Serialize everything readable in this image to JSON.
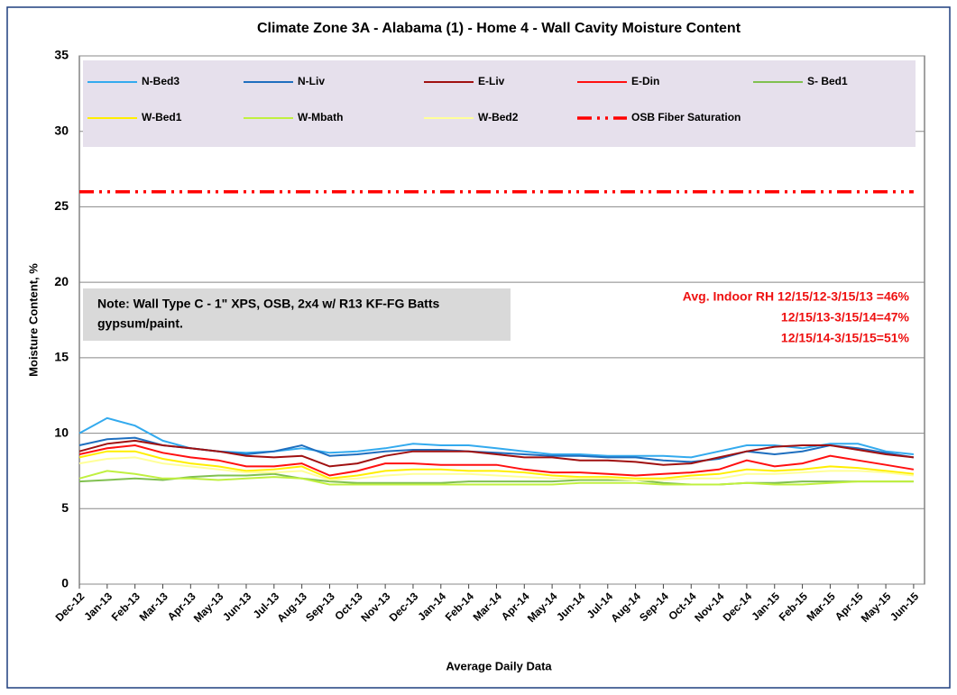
{
  "chart_data": {
    "type": "line",
    "title": "Climate Zone 3A - Alabama (1) - Home 4 - Wall Cavity Moisture Content",
    "xlabel": "Average Daily Data",
    "ylabel": "Moisture Content, %",
    "categories": [
      "Dec-12",
      "Jan-13",
      "Feb-13",
      "Mar-13",
      "Apr-13",
      "May-13",
      "Jun-13",
      "Jul-13",
      "Aug-13",
      "Sep-13",
      "Oct-13",
      "Nov-13",
      "Dec-13",
      "Jan-14",
      "Feb-14",
      "Mar-14",
      "Apr-14",
      "May-14",
      "Jun-14",
      "Jul-14",
      "Aug-14",
      "Sep-14",
      "Oct-14",
      "Nov-14",
      "Dec-14",
      "Jan-15",
      "Feb-15",
      "Mar-15",
      "Apr-15",
      "May-15",
      "Jun-15"
    ],
    "ylim": [
      0,
      35
    ],
    "yticks": [
      0,
      5,
      10,
      15,
      20,
      25,
      30,
      35
    ],
    "grid": true,
    "legend": "top",
    "series": [
      {
        "name": "N-Bed3",
        "color": "#33aaee",
        "values": [
          10,
          11,
          10.5,
          9.5,
          9,
          8.8,
          8.7,
          8.8,
          9,
          8.7,
          8.8,
          9,
          9.3,
          9.2,
          9.2,
          9,
          8.8,
          8.6,
          8.6,
          8.5,
          8.5,
          8.5,
          8.4,
          8.8,
          9.2,
          9.2,
          9,
          9.3,
          9.3,
          8.8,
          8.6
        ]
      },
      {
        "name": "N-Liv",
        "color": "#1f6fbf",
        "values": [
          9.2,
          9.6,
          9.7,
          9.2,
          9,
          8.8,
          8.6,
          8.8,
          9.2,
          8.5,
          8.6,
          8.8,
          8.9,
          8.9,
          8.8,
          8.7,
          8.6,
          8.5,
          8.5,
          8.4,
          8.4,
          8.2,
          8.1,
          8.3,
          8.8,
          8.6,
          8.8,
          9.2,
          9,
          8.7,
          8.4
        ]
      },
      {
        "name": "E-Liv",
        "color": "#a01010",
        "values": [
          8.8,
          9.3,
          9.5,
          9.2,
          9,
          8.8,
          8.5,
          8.4,
          8.5,
          7.8,
          8,
          8.5,
          8.8,
          8.8,
          8.8,
          8.6,
          8.4,
          8.4,
          8.2,
          8.2,
          8.1,
          7.9,
          8,
          8.4,
          8.8,
          9.1,
          9.2,
          9.2,
          8.9,
          8.6,
          8.4
        ]
      },
      {
        "name": "E-Din",
        "color": "#ff1010",
        "values": [
          8.6,
          9,
          9.2,
          8.7,
          8.4,
          8.2,
          7.8,
          7.8,
          8,
          7.2,
          7.5,
          8,
          8,
          7.9,
          7.9,
          7.9,
          7.6,
          7.4,
          7.4,
          7.3,
          7.2,
          7.3,
          7.4,
          7.6,
          8.2,
          7.8,
          8,
          8.5,
          8.2,
          7.9,
          7.6
        ]
      },
      {
        "name": "S- Bed1",
        "color": "#80c050",
        "values": [
          6.8,
          6.9,
          7,
          6.9,
          7.1,
          7.2,
          7.2,
          7.3,
          7,
          6.8,
          6.7,
          6.7,
          6.7,
          6.7,
          6.8,
          6.8,
          6.8,
          6.8,
          6.9,
          6.9,
          6.9,
          6.7,
          6.6,
          6.6,
          6.7,
          6.7,
          6.8,
          6.8,
          6.8,
          6.8,
          6.8
        ]
      },
      {
        "name": "W-Bed1",
        "color": "#ffee00",
        "values": [
          8.4,
          8.8,
          8.8,
          8.3,
          8,
          7.8,
          7.5,
          7.6,
          7.8,
          7,
          7.2,
          7.5,
          7.6,
          7.6,
          7.5,
          7.5,
          7.4,
          7.2,
          7.1,
          7.1,
          7,
          7,
          7.2,
          7.3,
          7.6,
          7.5,
          7.6,
          7.8,
          7.7,
          7.5,
          7.3
        ]
      },
      {
        "name": "W-Mbath",
        "color": "#c0f040",
        "values": [
          7,
          7.5,
          7.3,
          7,
          7,
          6.9,
          7,
          7.1,
          7,
          6.6,
          6.6,
          6.6,
          6.6,
          6.6,
          6.6,
          6.6,
          6.6,
          6.6,
          6.7,
          6.7,
          6.7,
          6.6,
          6.6,
          6.6,
          6.7,
          6.6,
          6.6,
          6.7,
          6.8,
          6.8,
          6.8
        ]
      },
      {
        "name": "W-Bed2",
        "color": "#ffff99",
        "values": [
          8,
          8.3,
          8.4,
          8,
          7.8,
          7.6,
          7.4,
          7.4,
          7.5,
          6.9,
          7,
          7.2,
          7.3,
          7.3,
          7.3,
          7.2,
          7.1,
          7,
          7,
          7,
          6.9,
          6.9,
          7,
          7,
          7.3,
          7.3,
          7.4,
          7.5,
          7.5,
          7.4,
          7.2
        ]
      },
      {
        "name": "OSB Fiber Saturation",
        "color": "#ff0000",
        "line_style": "dash-dot",
        "values": [
          26,
          26,
          26,
          26,
          26,
          26,
          26,
          26,
          26,
          26,
          26,
          26,
          26,
          26,
          26,
          26,
          26,
          26,
          26,
          26,
          26,
          26,
          26,
          26,
          26,
          26,
          26,
          26,
          26,
          26,
          26
        ]
      }
    ],
    "note": [
      "Note:  Wall Type C - 1\" XPS, OSB, 2x4 w/ R13 KF-FG Batts",
      "gypsum/paint."
    ],
    "annotation": [
      "Avg. Indoor RH 12/15/12-3/15/13 =46%",
      "12/15/13-3/15/14=47%",
      "12/15/14-3/15/15=51%"
    ]
  }
}
